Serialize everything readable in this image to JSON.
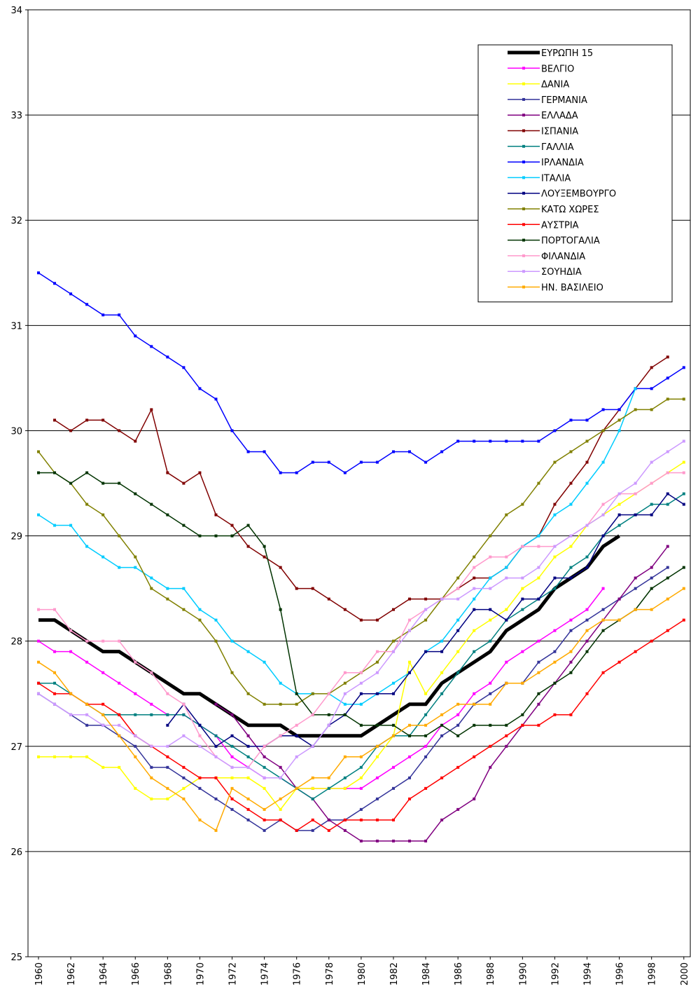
{
  "chart_data": {
    "type": "line",
    "x": [
      1960,
      1961,
      1962,
      1963,
      1964,
      1965,
      1966,
      1967,
      1968,
      1969,
      1970,
      1971,
      1972,
      1973,
      1974,
      1975,
      1976,
      1977,
      1978,
      1979,
      1980,
      1981,
      1982,
      1983,
      1984,
      1985,
      1986,
      1987,
      1988,
      1989,
      1990,
      1991,
      1992,
      1993,
      1994,
      1995,
      1996,
      1997,
      1998,
      1999,
      2000
    ],
    "xlim": [
      1959.35,
      2000.4
    ],
    "xticks": [
      1960,
      1962,
      1964,
      1966,
      1968,
      1970,
      1972,
      1974,
      1976,
      1978,
      1980,
      1982,
      1984,
      1986,
      1988,
      1990,
      1992,
      1994,
      1996,
      1998,
      2000
    ],
    "ylim": [
      25,
      34
    ],
    "yticks": [
      25,
      26,
      27,
      28,
      29,
      30,
      31,
      32,
      33,
      34
    ],
    "grid": true,
    "legend": "top-right",
    "series": [
      {
        "name": "ΕΥΡΩΠΗ 15",
        "color": "#000000",
        "values": [
          28.2,
          28.2,
          28.1,
          28.0,
          27.9,
          27.9,
          27.8,
          27.7,
          27.6,
          27.5,
          27.5,
          27.4,
          27.3,
          27.2,
          27.2,
          27.2,
          27.1,
          27.1,
          27.1,
          27.1,
          27.1,
          27.2,
          27.3,
          27.4,
          27.4,
          27.6,
          27.7,
          27.8,
          27.9,
          28.1,
          28.2,
          28.3,
          28.5,
          28.6,
          28.7,
          28.9,
          29.0,
          null,
          null,
          null,
          null
        ]
      },
      {
        "name": "ΒΕΛΓΙΟ",
        "color": "#ff00ff",
        "values": [
          28.0,
          27.9,
          27.9,
          27.8,
          27.7,
          27.6,
          27.5,
          27.4,
          27.3,
          27.3,
          27.2,
          27.1,
          26.9,
          26.8,
          26.7,
          26.7,
          26.6,
          26.6,
          26.6,
          26.6,
          26.6,
          26.7,
          26.8,
          26.9,
          27.0,
          27.2,
          27.3,
          27.5,
          27.6,
          27.8,
          27.9,
          28.0,
          28.1,
          28.2,
          28.3,
          28.5,
          null,
          null,
          null,
          null,
          null
        ]
      },
      {
        "name": "ΔΑΝΙΑ",
        "color": "#ffff00",
        "values": [
          26.9,
          26.9,
          26.9,
          26.9,
          26.8,
          26.8,
          26.6,
          26.5,
          26.5,
          26.6,
          26.7,
          26.7,
          26.7,
          26.7,
          26.6,
          26.4,
          26.6,
          26.6,
          26.6,
          26.6,
          26.7,
          26.9,
          27.1,
          27.8,
          27.5,
          27.7,
          27.9,
          28.1,
          28.2,
          28.3,
          28.5,
          28.6,
          28.8,
          28.9,
          29.1,
          29.2,
          29.3,
          29.4,
          29.5,
          29.6,
          29.7
        ]
      },
      {
        "name": "ΓΕΡΜΑΝΙΑ",
        "color": "#333399",
        "values": [
          27.5,
          27.4,
          27.3,
          27.2,
          27.2,
          27.1,
          27.0,
          26.8,
          26.8,
          26.7,
          26.6,
          26.5,
          26.4,
          26.3,
          26.2,
          26.3,
          26.2,
          26.2,
          26.3,
          26.3,
          26.4,
          26.5,
          26.6,
          26.7,
          26.9,
          27.1,
          27.2,
          27.4,
          27.5,
          27.6,
          27.6,
          27.8,
          27.9,
          28.1,
          28.2,
          28.3,
          28.4,
          28.5,
          28.6,
          28.7,
          null
        ]
      },
      {
        "name": "ΕΛΛΑΔΑ",
        "color": "#800080",
        "values": [
          null,
          null,
          null,
          null,
          null,
          null,
          null,
          null,
          null,
          null,
          null,
          27.4,
          27.3,
          27.1,
          26.9,
          26.8,
          26.6,
          26.5,
          26.3,
          26.2,
          26.1,
          26.1,
          26.1,
          26.1,
          26.1,
          26.3,
          26.4,
          26.5,
          26.8,
          27.0,
          27.2,
          27.4,
          27.6,
          27.8,
          28.0,
          28.2,
          28.4,
          28.6,
          28.7,
          28.9,
          null
        ]
      },
      {
        "name": "ΙΣΠΑΝΙΑ",
        "color": "#800000",
        "values": [
          null,
          30.1,
          30.0,
          30.1,
          30.1,
          30.0,
          29.9,
          30.2,
          29.6,
          29.5,
          29.6,
          29.2,
          29.1,
          28.9,
          28.8,
          28.7,
          28.5,
          28.5,
          28.4,
          28.3,
          28.2,
          28.2,
          28.3,
          28.4,
          28.4,
          28.4,
          28.5,
          28.6,
          28.6,
          28.7,
          28.9,
          29.0,
          29.3,
          29.5,
          29.7,
          30.0,
          30.2,
          30.4,
          30.6,
          30.7,
          null
        ]
      },
      {
        "name": "ΓΑΛΛΙΑ",
        "color": "#008080",
        "values": [
          27.6,
          27.6,
          27.5,
          27.4,
          27.3,
          27.3,
          27.3,
          27.3,
          27.3,
          27.3,
          27.2,
          27.1,
          27.0,
          26.9,
          26.8,
          26.7,
          26.6,
          26.5,
          26.6,
          26.7,
          26.8,
          27.0,
          27.1,
          27.1,
          27.3,
          27.5,
          27.7,
          27.9,
          28.0,
          28.2,
          28.3,
          28.4,
          28.5,
          28.7,
          28.8,
          29.0,
          29.1,
          29.2,
          29.3,
          29.3,
          29.4
        ]
      },
      {
        "name": "ΙΡΛΑΝΔΙΑ",
        "color": "#0000ff",
        "values": [
          31.5,
          31.4,
          31.3,
          31.2,
          31.1,
          31.1,
          30.9,
          30.8,
          30.7,
          30.6,
          30.4,
          30.3,
          30.0,
          29.8,
          29.8,
          29.6,
          29.6,
          29.7,
          29.7,
          29.6,
          29.7,
          29.7,
          29.8,
          29.8,
          29.7,
          29.8,
          29.9,
          29.9,
          29.9,
          29.9,
          29.9,
          29.9,
          30.0,
          30.1,
          30.1,
          30.2,
          30.2,
          30.4,
          30.4,
          30.5,
          30.6
        ]
      },
      {
        "name": "ΙΤΑΛΙΑ",
        "color": "#00ccff",
        "values": [
          29.2,
          29.1,
          29.1,
          28.9,
          28.8,
          28.7,
          28.7,
          28.6,
          28.5,
          28.5,
          28.3,
          28.2,
          28.0,
          27.9,
          27.8,
          27.6,
          27.5,
          27.5,
          27.5,
          27.4,
          27.4,
          27.5,
          27.6,
          27.7,
          27.9,
          28.0,
          28.2,
          28.4,
          28.6,
          28.7,
          28.9,
          29.0,
          29.2,
          29.3,
          29.5,
          29.7,
          30.0,
          30.4,
          null,
          null,
          null
        ]
      },
      {
        "name": "ΛΟΥΞΕΜΒΟΥΡΓΟ",
        "color": "#000080",
        "values": [
          null,
          null,
          null,
          null,
          null,
          null,
          null,
          null,
          27.2,
          27.4,
          27.2,
          27.0,
          27.1,
          27.0,
          27.0,
          27.1,
          27.1,
          27.0,
          27.2,
          27.3,
          27.5,
          27.5,
          27.5,
          27.7,
          27.9,
          27.9,
          28.1,
          28.3,
          28.3,
          28.2,
          28.4,
          28.4,
          28.6,
          28.6,
          28.7,
          29.0,
          29.2,
          29.2,
          29.2,
          29.4,
          29.3
        ]
      },
      {
        "name": "ΚΑΤΩ ΧΩΡΕΣ",
        "color": "#808000",
        "values": [
          29.8,
          29.6,
          29.5,
          29.3,
          29.2,
          29.0,
          28.8,
          28.5,
          28.4,
          28.3,
          28.2,
          28.0,
          27.7,
          27.5,
          27.4,
          27.4,
          27.4,
          27.5,
          27.5,
          27.6,
          27.7,
          27.8,
          28.0,
          28.1,
          28.2,
          28.4,
          28.6,
          28.8,
          29.0,
          29.2,
          29.3,
          29.5,
          29.7,
          29.8,
          29.9,
          30.0,
          30.1,
          30.2,
          30.2,
          30.3,
          30.3
        ]
      },
      {
        "name": "ΑΥΣΤΡΙΑ",
        "color": "#ff0000",
        "values": [
          27.6,
          27.5,
          27.5,
          27.4,
          27.4,
          27.3,
          27.1,
          27.0,
          26.9,
          26.8,
          26.7,
          26.7,
          26.5,
          26.4,
          26.3,
          26.3,
          26.2,
          26.3,
          26.2,
          26.3,
          26.3,
          26.3,
          26.3,
          26.5,
          26.6,
          26.7,
          26.8,
          26.9,
          27.0,
          27.1,
          27.2,
          27.2,
          27.3,
          27.3,
          27.5,
          27.7,
          27.8,
          27.9,
          28.0,
          28.1,
          28.2
        ]
      },
      {
        "name": "ΠΟΡΤΟΓΑΛΙΑ",
        "color": "#003300",
        "values": [
          29.6,
          29.6,
          29.5,
          29.6,
          29.5,
          29.5,
          29.4,
          29.3,
          29.2,
          29.1,
          29.0,
          29.0,
          29.0,
          29.1,
          28.9,
          28.3,
          27.5,
          27.3,
          27.3,
          27.3,
          27.2,
          27.2,
          27.2,
          27.1,
          27.1,
          27.2,
          27.1,
          27.2,
          27.2,
          27.2,
          27.3,
          27.5,
          27.6,
          27.7,
          27.9,
          28.1,
          28.2,
          28.3,
          28.5,
          28.6,
          28.7
        ]
      },
      {
        "name": "ΦΙΛΑΝΔΙΑ",
        "color": "#ff99cc",
        "values": [
          28.3,
          28.3,
          28.1,
          28.0,
          28.0,
          28.0,
          27.8,
          27.7,
          27.5,
          27.4,
          27.1,
          26.9,
          26.8,
          26.8,
          27.0,
          27.1,
          27.2,
          27.3,
          27.5,
          27.7,
          27.7,
          27.9,
          27.9,
          28.2,
          28.3,
          28.4,
          28.5,
          28.7,
          28.8,
          28.8,
          28.9,
          28.9,
          28.9,
          29.0,
          29.1,
          29.3,
          29.4,
          29.4,
          29.5,
          29.6,
          29.6
        ]
      },
      {
        "name": "ΣΟΥΗΔΙΑ",
        "color": "#cc99ff",
        "values": [
          27.5,
          27.4,
          27.3,
          27.3,
          27.2,
          27.2,
          27.1,
          27.0,
          27.0,
          27.1,
          27.0,
          26.9,
          26.8,
          26.8,
          26.7,
          26.7,
          26.9,
          27.0,
          27.2,
          27.5,
          27.6,
          27.7,
          27.9,
          28.1,
          28.3,
          28.4,
          28.4,
          28.5,
          28.5,
          28.6,
          28.6,
          28.7,
          28.9,
          29.0,
          29.1,
          29.2,
          29.4,
          29.5,
          29.7,
          29.8,
          29.9
        ]
      },
      {
        "name": "ΗΝ. ΒΑΣΙΛΕΙΟ",
        "color": "#ffaa00",
        "values": [
          27.8,
          27.7,
          27.5,
          27.4,
          27.3,
          27.1,
          26.9,
          26.7,
          26.6,
          26.5,
          26.3,
          26.2,
          26.6,
          26.5,
          26.4,
          26.5,
          26.6,
          26.7,
          26.7,
          26.9,
          26.9,
          27.0,
          27.1,
          27.2,
          27.2,
          27.3,
          27.4,
          27.4,
          27.4,
          27.6,
          27.6,
          27.7,
          27.8,
          27.9,
          28.1,
          28.2,
          28.2,
          28.3,
          28.3,
          28.4,
          28.5
        ]
      }
    ]
  }
}
